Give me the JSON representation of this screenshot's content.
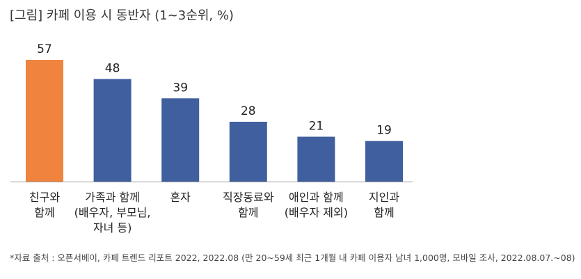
{
  "title": "[그림] 카페 이용 시 동반자 (1~3순위, %)",
  "footnote": "*자료 출처 : 오픈서베이, 카페 트렌드 리포트 2022, 2022.08 (만 20~59세 최근 1개월 내 카페 이용자 남녀 1,000명, 모바일 조사, 2022.08.07.~08)",
  "colors": {
    "highlight": "#F0843F",
    "bar": "#3F5F9E",
    "axis": "#999999"
  },
  "chart_data": {
    "type": "bar",
    "categories": [
      "친구와\n함께",
      "가족과 함께\n(배우자, 부모님,\n자녀 등)",
      "혼자",
      "직장동료와\n함께",
      "애인과 함께\n(배우자 제외)",
      "지인과\n함께"
    ],
    "values": [
      57,
      48,
      39,
      28,
      21,
      19
    ],
    "data_labels": [
      "57",
      "48",
      "39",
      "28",
      "21",
      "19"
    ],
    "highlight_index": 0,
    "ylim": [
      0,
      57
    ],
    "grid": false,
    "title": "[그림] 카페 이용 시 동반자 (1~3순위, %)"
  }
}
